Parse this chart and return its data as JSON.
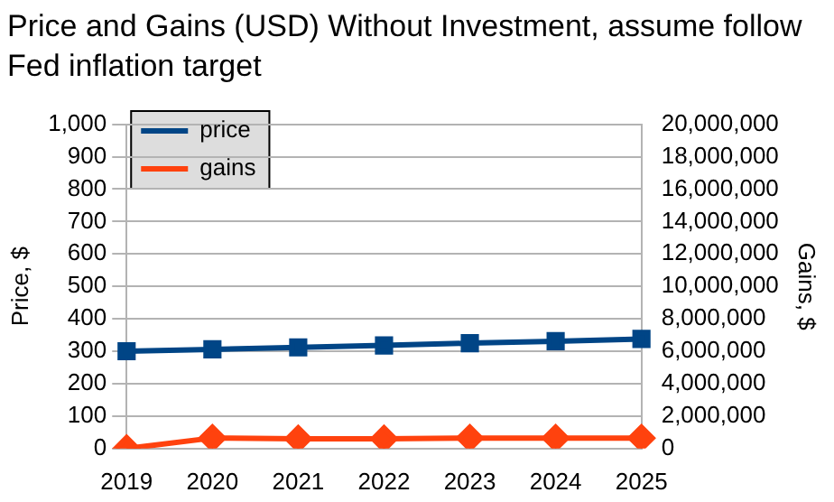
{
  "chart_data": {
    "type": "line",
    "title": "Price and Gains (USD) Without Investment, assume follow Fed inflation target",
    "categories": [
      "2019",
      "2020",
      "2021",
      "2022",
      "2023",
      "2024",
      "2025"
    ],
    "series": [
      {
        "name": "price",
        "color": "#004586",
        "marker": "square",
        "values": [
          300,
          306,
          312,
          318,
          325,
          331,
          338
        ]
      },
      {
        "name": "gains",
        "color": "#ff420e",
        "marker": "diamond",
        "axis": "y2",
        "values": [
          0,
          650000,
          600000,
          600000,
          650000,
          650000,
          650000
        ]
      }
    ],
    "ylabel": "Price, $",
    "y2label": "Gains, $",
    "ylim": [
      0,
      1000
    ],
    "yticks": [
      0,
      100,
      200,
      300,
      400,
      500,
      600,
      700,
      800,
      900,
      {
        "value": 1000,
        "label": "1,000"
      }
    ],
    "y2lim": [
      0,
      20000000
    ],
    "y2ticks": [
      0,
      {
        "value": 2000000,
        "label": "2,000,000"
      },
      {
        "value": 4000000,
        "label": "4,000,000"
      },
      {
        "value": 6000000,
        "label": "6,000,000"
      },
      {
        "value": 8000000,
        "label": "8,000,000"
      },
      {
        "value": 10000000,
        "label": "10,000,000"
      },
      {
        "value": 12000000,
        "label": "12,000,000"
      },
      {
        "value": 14000000,
        "label": "14,000,000"
      },
      {
        "value": 16000000,
        "label": "16,000,000"
      },
      {
        "value": 18000000,
        "label": "18,000,000"
      },
      {
        "value": 20000000,
        "label": "20,000,000"
      }
    ],
    "grid": "y",
    "legend": "top left",
    "line_style": "solid"
  }
}
